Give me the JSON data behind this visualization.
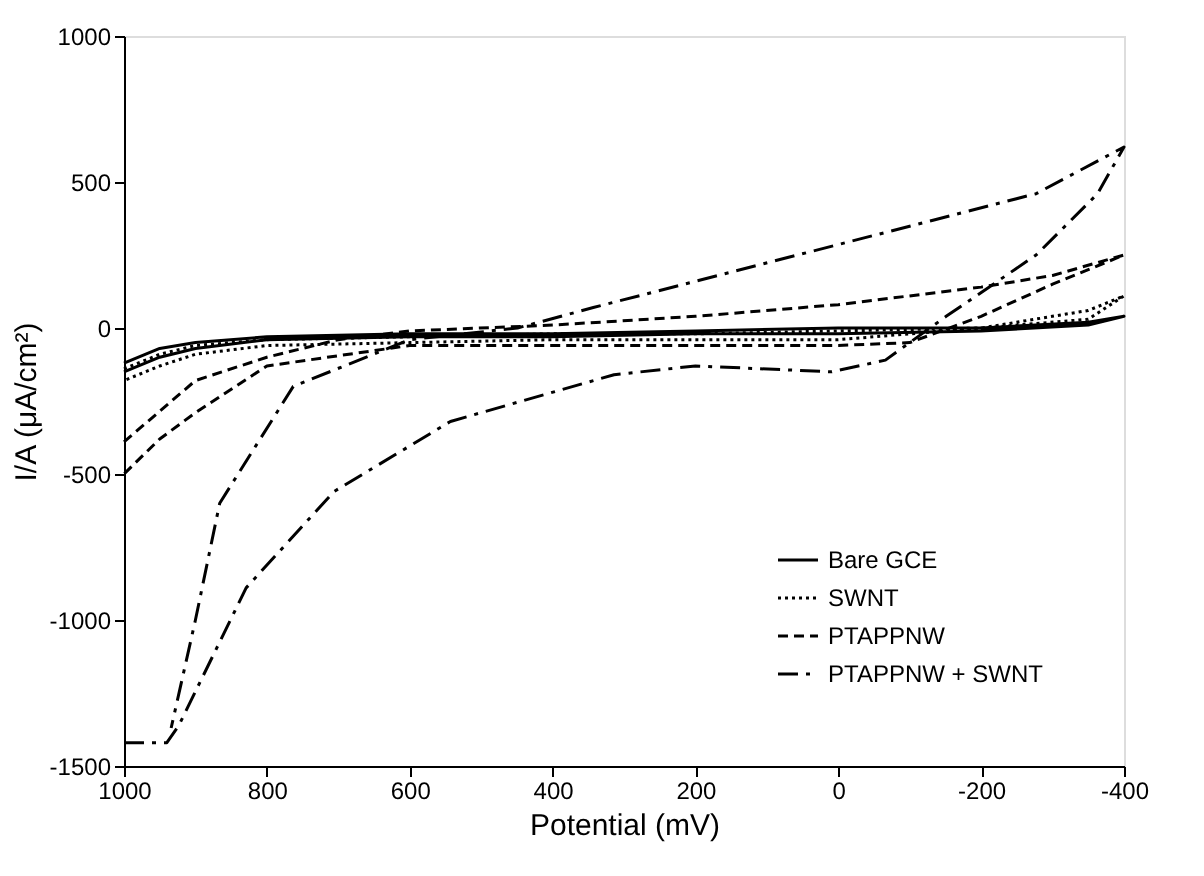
{
  "chart_data": {
    "type": "line",
    "xlabel": "Potential (mV)",
    "ylabel": "I/A (μA/cm²)",
    "xlim": [
      1000,
      -400
    ],
    "xticks": [
      1000,
      800,
      600,
      400,
      200,
      0,
      -200,
      -400
    ],
    "ylim": [
      -1500,
      1000
    ],
    "yticks": [
      -1500,
      -1000,
      -500,
      0,
      500,
      1000
    ],
    "grid": false,
    "legend": "bottom right",
    "marker": "none",
    "series": [
      {
        "name": "Bare GCE",
        "color": "#000000",
        "line_style": "solid",
        "x": [
          1000,
          950,
          900,
          800,
          600,
          400,
          200,
          0,
          -200,
          -350,
          -400,
          -350,
          -200,
          0,
          200,
          400,
          600,
          800,
          900,
          950,
          1000
        ],
        "values": [
          -120,
          -70,
          -50,
          -30,
          -20,
          -20,
          -10,
          0,
          0,
          20,
          40,
          10,
          -10,
          -20,
          -20,
          -30,
          -30,
          -40,
          -70,
          -100,
          -150
        ]
      },
      {
        "name": "SWNT",
        "color": "#000000",
        "line_style": "dotted",
        "x": [
          1000,
          950,
          900,
          800,
          600,
          400,
          200,
          0,
          -200,
          -350,
          -400,
          -350,
          -200,
          0,
          200,
          400,
          600,
          800,
          900,
          950,
          1000
        ],
        "values": [
          -140,
          -90,
          -60,
          -40,
          -30,
          -20,
          -20,
          -10,
          0,
          30,
          110,
          60,
          0,
          -40,
          -40,
          -40,
          -50,
          -60,
          -90,
          -130,
          -180
        ]
      },
      {
        "name": "PTAPPNW",
        "color": "#000000",
        "line_style": "dashed",
        "x": [
          1000,
          900,
          800,
          700,
          600,
          400,
          200,
          0,
          -200,
          -300,
          -400,
          -350,
          -300,
          -200,
          -100,
          0,
          200,
          400,
          600,
          800,
          900,
          950,
          1000
        ],
        "values": [
          -390,
          -180,
          -100,
          -40,
          -10,
          10,
          40,
          80,
          140,
          180,
          250,
          200,
          150,
          40,
          -50,
          -60,
          -60,
          -60,
          -60,
          -130,
          -290,
          -380,
          -500
        ]
      },
      {
        "name": "PTAPPNW + SWNT",
        "color": "#000000",
        "line_style": "dashdot",
        "x": [
          1000,
          940,
          923,
          829,
          706,
          543,
          314,
          200,
          9,
          -66,
          -151,
          -277,
          -363,
          -400,
          -277,
          -134,
          57,
          343,
          449,
          600,
          763,
          866,
          900,
          934
        ],
        "values": [
          -1420,
          -1420,
          -1360,
          -890,
          -560,
          -320,
          -160,
          -130,
          -150,
          -110,
          40,
          250,
          460,
          620,
          460,
          370,
          250,
          70,
          0,
          -40,
          -200,
          -600,
          -1000,
          -1370
        ]
      }
    ]
  }
}
